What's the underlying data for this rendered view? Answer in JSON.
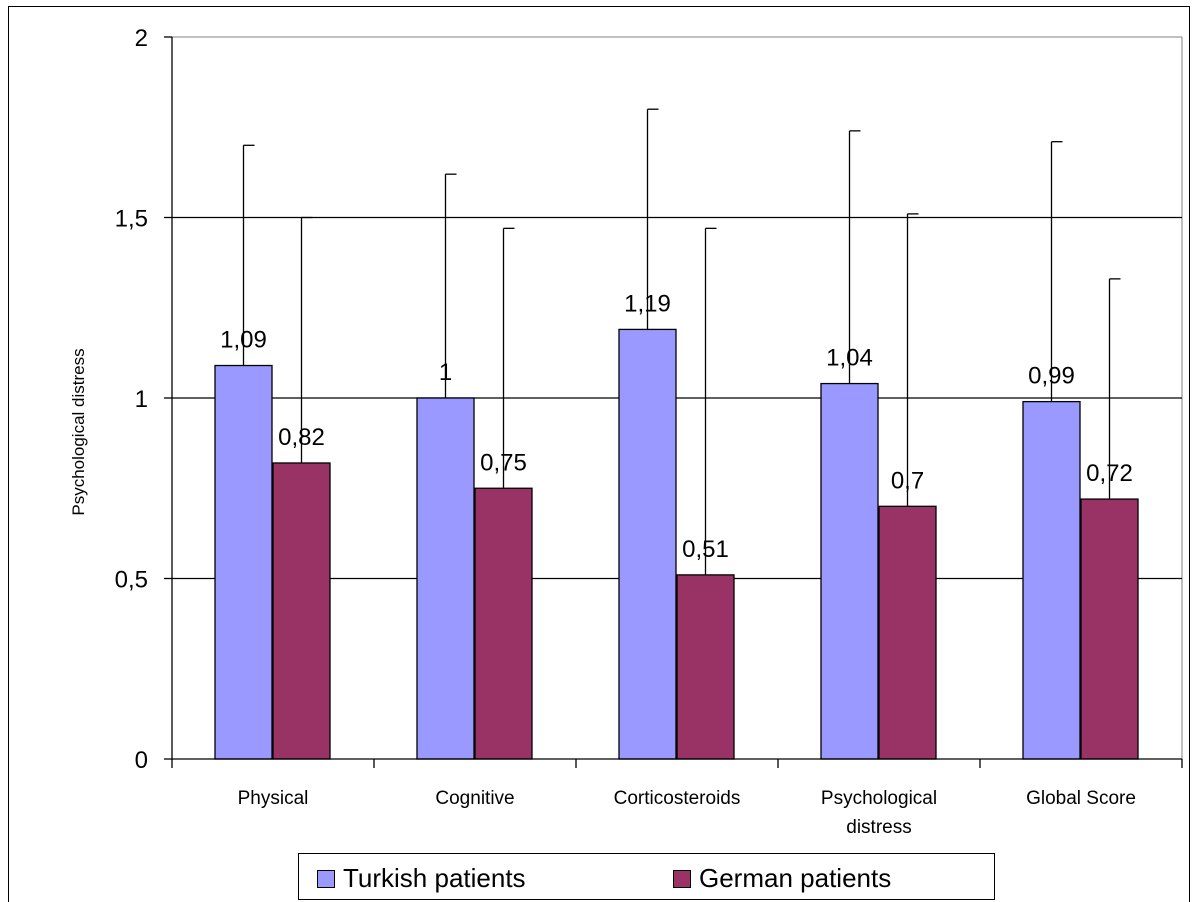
{
  "chart_data": {
    "type": "bar",
    "title": "",
    "xlabel": "",
    "ylabel": "Psychological distress",
    "ylim": [
      0,
      2
    ],
    "yticks": [
      0,
      0.5,
      1,
      1.5,
      2
    ],
    "ytick_labels": [
      "0",
      "0,5",
      "1",
      "1,5",
      "2"
    ],
    "grid": true,
    "legend_position": "bottom",
    "categories": [
      [
        "Physical"
      ],
      [
        "Cognitive"
      ],
      [
        "Corticosteroids"
      ],
      [
        "Psychological",
        "distress"
      ],
      [
        "Global Score"
      ]
    ],
    "series": [
      {
        "name": "Turkish patients",
        "color": "#9999ff",
        "values": [
          1.09,
          1.0,
          1.19,
          1.04,
          0.99
        ],
        "labels": [
          "1,09",
          "1",
          "1,19",
          "1,04",
          "0,99"
        ],
        "error_upper": [
          1.7,
          1.62,
          1.8,
          1.74,
          1.71
        ]
      },
      {
        "name": "German patients",
        "color": "#993366",
        "values": [
          0.82,
          0.75,
          0.51,
          0.7,
          0.72
        ],
        "labels": [
          "0,82",
          "0,75",
          "0,51",
          "0,7",
          "0,72"
        ],
        "error_upper": [
          1.5,
          1.47,
          1.47,
          1.51,
          1.33
        ]
      }
    ]
  }
}
